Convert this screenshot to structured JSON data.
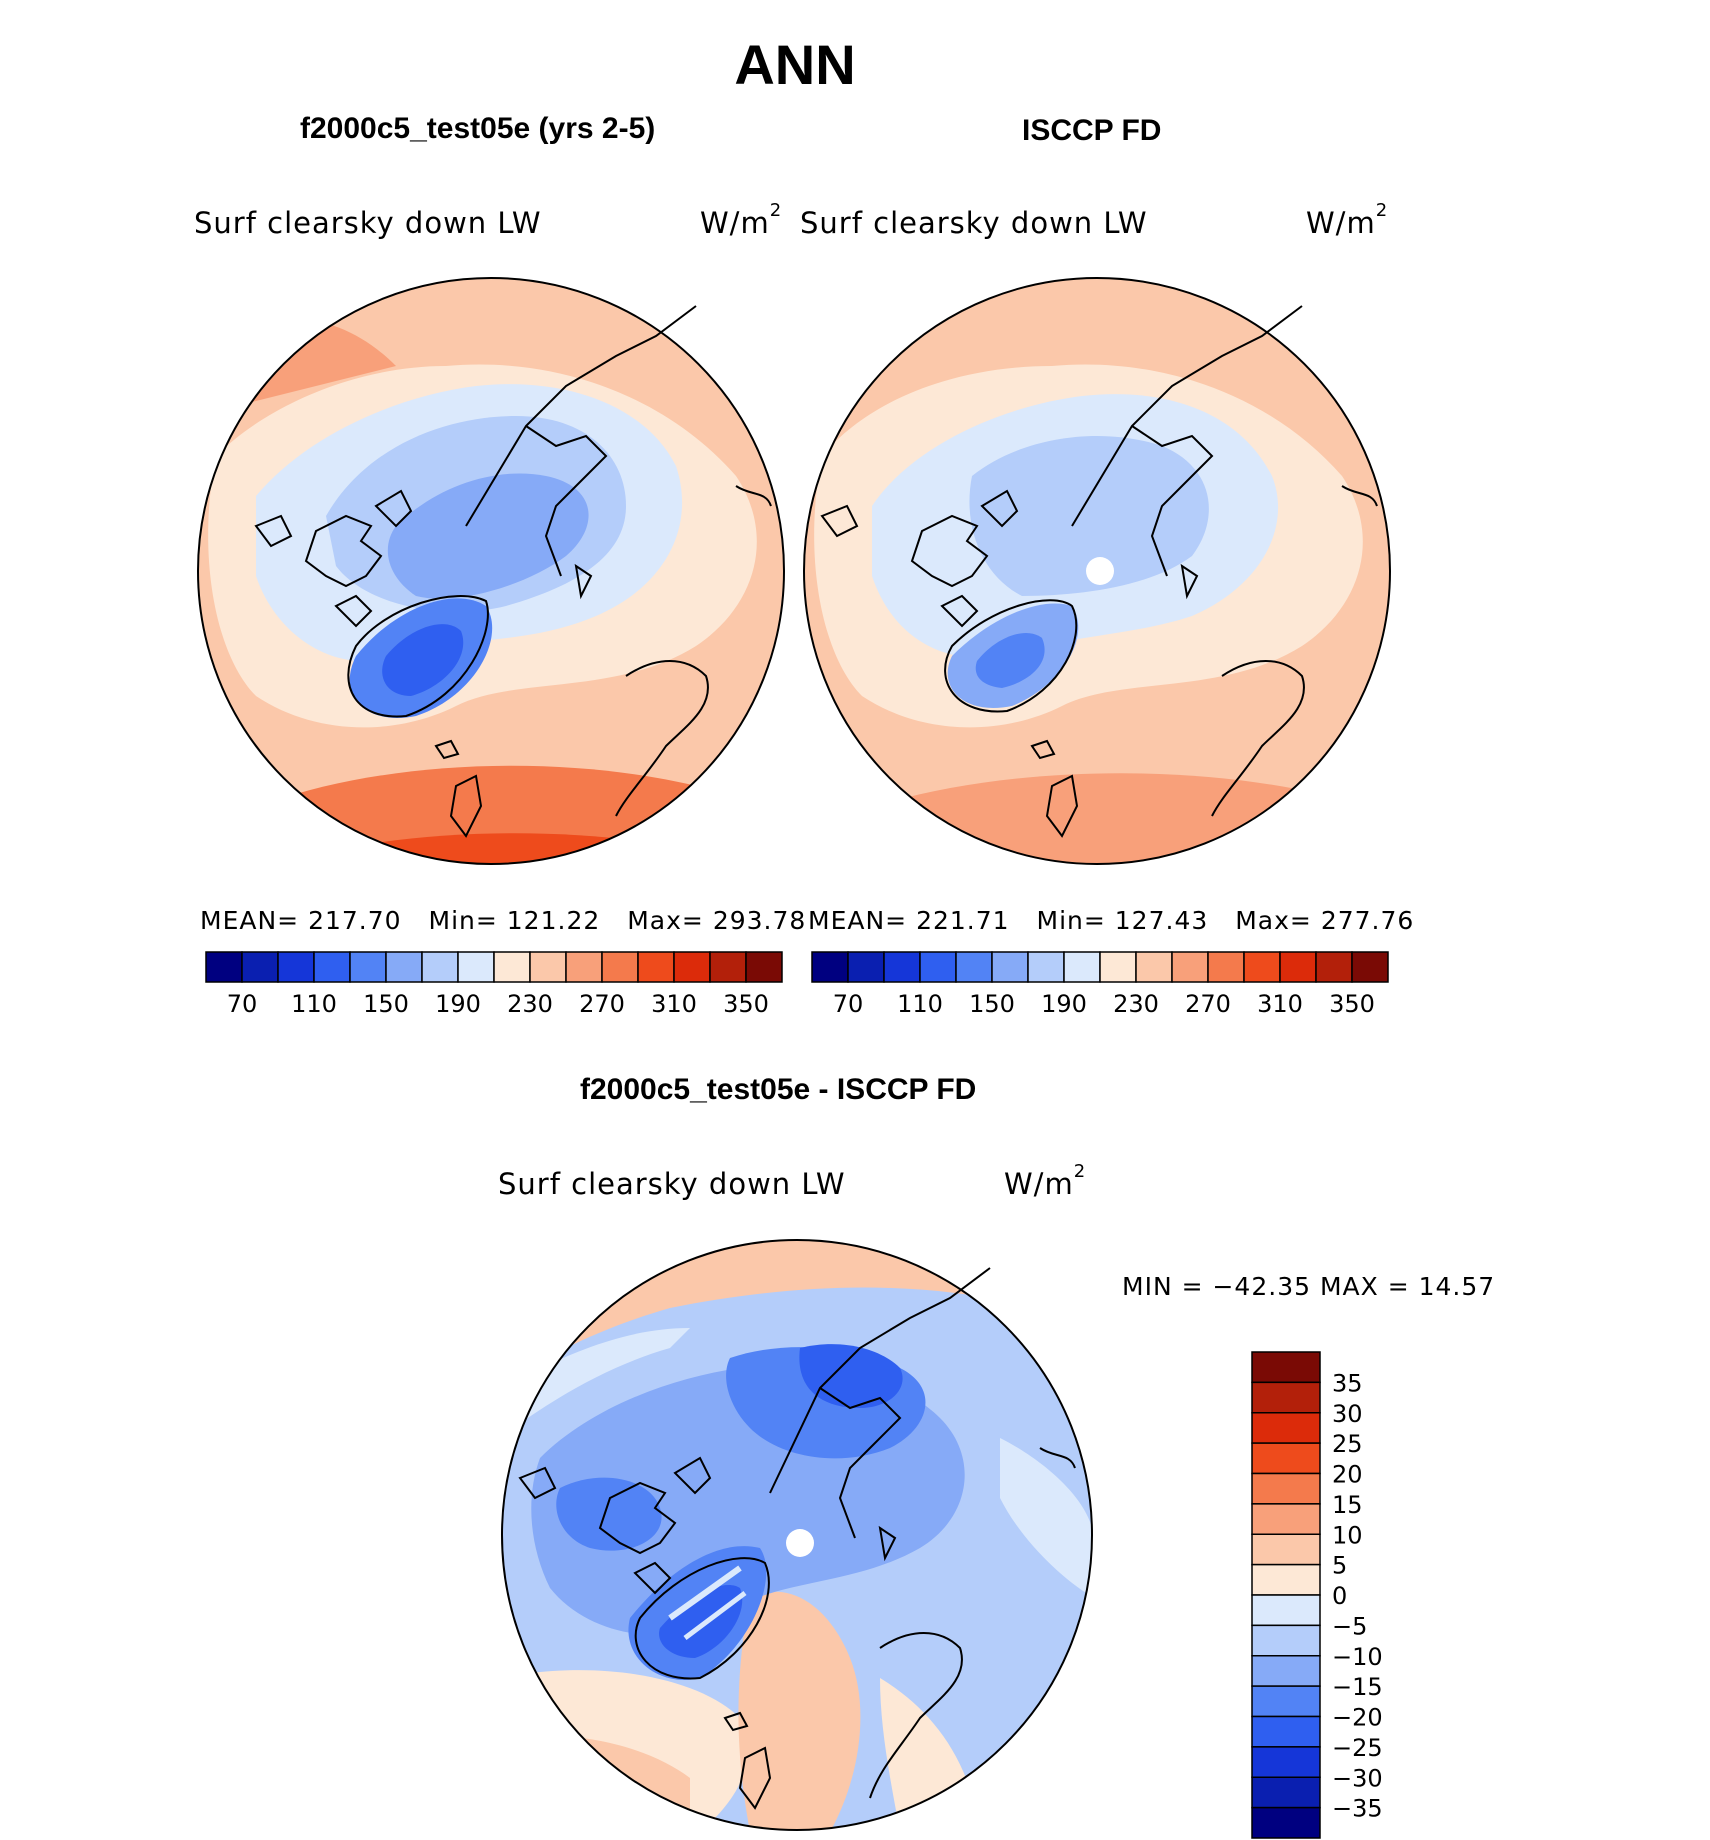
{
  "figure": {
    "season": "ANN",
    "variable": "Surf clearsky down LW",
    "units_base": "W/m",
    "units_exp": "2"
  },
  "panels": {
    "model": {
      "title": "f2000c5_test05e (yrs 2-5)",
      "mean_label": "MEAN=",
      "mean": "217.70",
      "min_label": "Min=",
      "min": "121.22",
      "max_label": "Max=",
      "max": "293.78"
    },
    "obs": {
      "title": "ISCCP FD",
      "mean_label": "MEAN=",
      "mean": "221.71",
      "min_label": "Min=",
      "min": "127.43",
      "max_label": "Max=",
      "max": "277.76"
    },
    "diff": {
      "title": "f2000c5_test05e - ISCCP FD",
      "minmax": "MIN = −42.35 MAX =  14.57"
    }
  },
  "chart_data": [
    {
      "type": "heatmap",
      "title": "f2000c5_test05e (yrs 2-5)",
      "projection": "north polar stereographic",
      "field": "Surf clearsky down LW",
      "units": "W/m2",
      "stats": {
        "mean": 217.7,
        "min": 121.22,
        "max": 293.78
      },
      "colorbar": {
        "levels": [
          70,
          90,
          110,
          130,
          150,
          170,
          190,
          210,
          230,
          250,
          270,
          290,
          310,
          330,
          350
        ],
        "tick_labels": [
          "70",
          "110",
          "150",
          "190",
          "230",
          "270",
          "310",
          "350"
        ],
        "colors": [
          "#000080",
          "#0a1fb0",
          "#1536d8",
          "#2f5ff0",
          "#5283f5",
          "#86aaf7",
          "#b4cdfa",
          "#dbe9fc",
          "#fde8d6",
          "#fbc8aa",
          "#f8a07a",
          "#f47a4c",
          "#ee4b1c",
          "#dc2b0a",
          "#b3200a",
          "#7a0a05"
        ]
      }
    },
    {
      "type": "heatmap",
      "title": "ISCCP FD",
      "projection": "north polar stereographic",
      "field": "Surf clearsky down LW",
      "units": "W/m2",
      "stats": {
        "mean": 221.71,
        "min": 127.43,
        "max": 277.76
      },
      "colorbar": {
        "levels": [
          70,
          90,
          110,
          130,
          150,
          170,
          190,
          210,
          230,
          250,
          270,
          290,
          310,
          330,
          350
        ],
        "tick_labels": [
          "70",
          "110",
          "150",
          "190",
          "230",
          "270",
          "310",
          "350"
        ],
        "colors": [
          "#000080",
          "#0a1fb0",
          "#1536d8",
          "#2f5ff0",
          "#5283f5",
          "#86aaf7",
          "#b4cdfa",
          "#dbe9fc",
          "#fde8d6",
          "#fbc8aa",
          "#f8a07a",
          "#f47a4c",
          "#ee4b1c",
          "#dc2b0a",
          "#b3200a",
          "#7a0a05"
        ]
      }
    },
    {
      "type": "heatmap",
      "title": "f2000c5_test05e - ISCCP FD",
      "projection": "north polar stereographic",
      "field": "Surf clearsky down LW",
      "units": "W/m2",
      "stats": {
        "min": -42.35,
        "max": 14.57
      },
      "colorbar": {
        "levels": [
          35,
          30,
          25,
          20,
          15,
          10,
          5,
          0,
          -5,
          -10,
          -15,
          -20,
          -25,
          -30,
          -35
        ],
        "tick_labels": [
          "35",
          "30",
          "25",
          "20",
          "15",
          "10",
          "5",
          "0",
          "−5",
          "−10",
          "−15",
          "−20",
          "−25",
          "−30",
          "−35"
        ],
        "colors": [
          "#7a0a05",
          "#b3200a",
          "#dc2b0a",
          "#ee4b1c",
          "#f47a4c",
          "#f8a07a",
          "#fbc8aa",
          "#fde8d6",
          "#dbe9fc",
          "#b4cdfa",
          "#86aaf7",
          "#5283f5",
          "#2f5ff0",
          "#1536d8",
          "#0a1fb0",
          "#000080"
        ]
      }
    }
  ]
}
